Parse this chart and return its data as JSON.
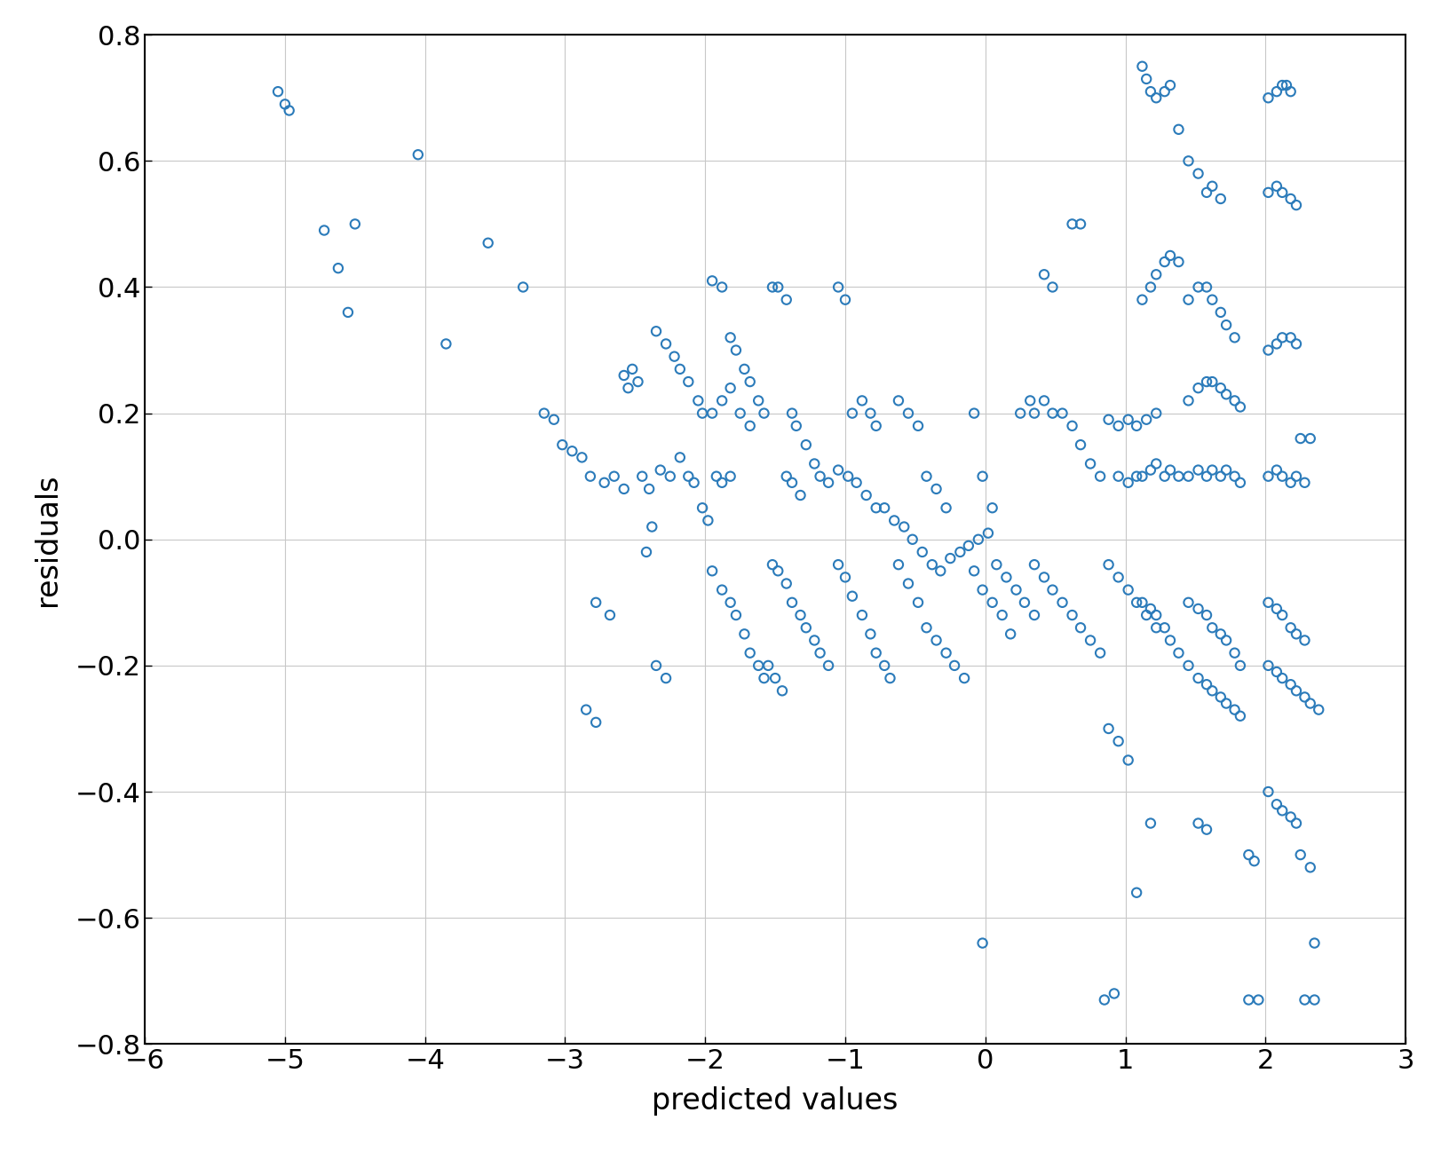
{
  "xlim": [
    -6,
    3
  ],
  "ylim": [
    -0.8,
    0.8
  ],
  "xticks": [
    -6,
    -5,
    -4,
    -3,
    -2,
    -1,
    0,
    1,
    2,
    3
  ],
  "yticks": [
    -0.8,
    -0.6,
    -0.4,
    -0.2,
    0,
    0.2,
    0.4,
    0.6,
    0.8
  ],
  "xlabel": "predicted values",
  "ylabel": "residuals",
  "marker_color": "#2B7BBA",
  "marker_size": 55,
  "marker_linewidth": 1.5,
  "grid_color": "#C8C8C8",
  "background_color": "#FFFFFF",
  "fig_background": "#FFFFFF",
  "spine_color": "#000000",
  "tick_labelsize": 22,
  "label_fontsize": 24,
  "points": [
    [
      -5.05,
      0.71
    ],
    [
      -5.0,
      0.69
    ],
    [
      -4.97,
      0.68
    ],
    [
      -4.72,
      0.49
    ],
    [
      -4.62,
      0.43
    ],
    [
      -4.55,
      0.36
    ],
    [
      -4.5,
      0.5
    ],
    [
      -4.05,
      0.61
    ],
    [
      -3.85,
      0.31
    ],
    [
      -3.55,
      0.47
    ],
    [
      -3.3,
      0.4
    ],
    [
      -3.15,
      0.2
    ],
    [
      -3.08,
      0.19
    ],
    [
      -3.02,
      0.15
    ],
    [
      -2.95,
      0.14
    ],
    [
      -2.88,
      0.13
    ],
    [
      -2.82,
      0.1
    ],
    [
      -2.72,
      0.09
    ],
    [
      -2.65,
      0.1
    ],
    [
      -2.58,
      0.08
    ],
    [
      -2.78,
      -0.1
    ],
    [
      -2.68,
      -0.12
    ],
    [
      -2.52,
      0.27
    ],
    [
      -2.48,
      0.25
    ],
    [
      -2.42,
      -0.02
    ],
    [
      -2.38,
      0.02
    ],
    [
      -2.35,
      0.33
    ],
    [
      -2.28,
      0.31
    ],
    [
      -2.22,
      0.29
    ],
    [
      -2.18,
      0.27
    ],
    [
      -2.12,
      0.25
    ],
    [
      -2.05,
      0.22
    ],
    [
      -2.02,
      0.2
    ],
    [
      -2.45,
      0.1
    ],
    [
      -2.4,
      0.08
    ],
    [
      -2.32,
      0.11
    ],
    [
      -2.25,
      0.1
    ],
    [
      -2.58,
      0.26
    ],
    [
      -2.55,
      0.24
    ],
    [
      -2.18,
      0.13
    ],
    [
      -2.12,
      0.1
    ],
    [
      -2.08,
      0.09
    ],
    [
      -2.02,
      0.05
    ],
    [
      -1.98,
      0.03
    ],
    [
      -1.95,
      0.41
    ],
    [
      -1.88,
      0.4
    ],
    [
      -1.82,
      0.32
    ],
    [
      -1.78,
      0.3
    ],
    [
      -1.72,
      0.27
    ],
    [
      -1.68,
      0.25
    ],
    [
      -1.62,
      0.22
    ],
    [
      -1.58,
      0.2
    ],
    [
      -1.92,
      0.1
    ],
    [
      -1.88,
      0.09
    ],
    [
      -1.82,
      0.1
    ],
    [
      -1.95,
      -0.05
    ],
    [
      -1.88,
      -0.08
    ],
    [
      -1.82,
      -0.1
    ],
    [
      -1.78,
      -0.12
    ],
    [
      -1.72,
      -0.15
    ],
    [
      -1.68,
      -0.18
    ],
    [
      -1.62,
      -0.2
    ],
    [
      -1.58,
      -0.22
    ],
    [
      -2.35,
      -0.2
    ],
    [
      -2.28,
      -0.22
    ],
    [
      -2.85,
      -0.27
    ],
    [
      -2.78,
      -0.29
    ],
    [
      -1.52,
      0.4
    ],
    [
      -1.48,
      0.4
    ],
    [
      -1.42,
      0.38
    ],
    [
      -1.38,
      0.2
    ],
    [
      -1.35,
      0.18
    ],
    [
      -1.28,
      0.15
    ],
    [
      -1.22,
      0.12
    ],
    [
      -1.18,
      0.1
    ],
    [
      -1.12,
      0.09
    ],
    [
      -1.52,
      -0.04
    ],
    [
      -1.48,
      -0.05
    ],
    [
      -1.42,
      -0.07
    ],
    [
      -1.38,
      -0.1
    ],
    [
      -1.32,
      -0.12
    ],
    [
      -1.28,
      -0.14
    ],
    [
      -1.22,
      -0.16
    ],
    [
      -1.18,
      -0.18
    ],
    [
      -1.12,
      -0.2
    ],
    [
      -1.55,
      -0.2
    ],
    [
      -1.5,
      -0.22
    ],
    [
      -1.45,
      -0.24
    ],
    [
      -1.05,
      0.4
    ],
    [
      -1.0,
      0.38
    ],
    [
      -0.95,
      0.2
    ],
    [
      -0.88,
      0.22
    ],
    [
      -0.82,
      0.2
    ],
    [
      -0.78,
      0.18
    ],
    [
      -1.05,
      -0.04
    ],
    [
      -1.0,
      -0.06
    ],
    [
      -0.95,
      -0.09
    ],
    [
      -0.88,
      -0.12
    ],
    [
      -0.82,
      -0.15
    ],
    [
      -0.78,
      -0.18
    ],
    [
      -0.72,
      -0.2
    ],
    [
      -0.68,
      -0.22
    ],
    [
      -0.62,
      0.22
    ],
    [
      -0.55,
      0.2
    ],
    [
      -0.48,
      0.18
    ],
    [
      -0.42,
      0.1
    ],
    [
      -0.35,
      0.08
    ],
    [
      -0.28,
      0.05
    ],
    [
      -0.62,
      -0.04
    ],
    [
      -0.55,
      -0.07
    ],
    [
      -0.48,
      -0.1
    ],
    [
      -0.42,
      -0.14
    ],
    [
      -0.35,
      -0.16
    ],
    [
      -0.28,
      -0.18
    ],
    [
      -0.22,
      -0.2
    ],
    [
      -0.15,
      -0.22
    ],
    [
      -0.08,
      0.2
    ],
    [
      -0.02,
      0.1
    ],
    [
      0.05,
      0.05
    ],
    [
      -0.08,
      -0.05
    ],
    [
      -0.02,
      -0.08
    ],
    [
      0.05,
      -0.1
    ],
    [
      0.12,
      -0.12
    ],
    [
      0.18,
      -0.15
    ],
    [
      -1.95,
      0.2
    ],
    [
      -1.88,
      0.22
    ],
    [
      -1.82,
      0.24
    ],
    [
      -1.75,
      0.2
    ],
    [
      -1.68,
      0.18
    ],
    [
      -1.42,
      0.1
    ],
    [
      -1.38,
      0.09
    ],
    [
      -1.32,
      0.07
    ],
    [
      -1.05,
      0.11
    ],
    [
      -0.98,
      0.1
    ],
    [
      -0.92,
      0.09
    ],
    [
      -0.85,
      0.07
    ],
    [
      -0.78,
      0.05
    ],
    [
      -0.72,
      0.05
    ],
    [
      -0.65,
      0.03
    ],
    [
      -0.58,
      0.02
    ],
    [
      -0.52,
      0.0
    ],
    [
      -0.45,
      -0.02
    ],
    [
      -0.38,
      -0.04
    ],
    [
      -0.32,
      -0.05
    ],
    [
      -0.25,
      -0.03
    ],
    [
      -0.18,
      -0.02
    ],
    [
      -0.12,
      -0.01
    ],
    [
      -0.05,
      0.0
    ],
    [
      0.02,
      0.01
    ],
    [
      0.08,
      -0.04
    ],
    [
      0.15,
      -0.06
    ],
    [
      0.22,
      -0.08
    ],
    [
      0.28,
      -0.1
    ],
    [
      0.35,
      -0.12
    ],
    [
      0.42,
      0.42
    ],
    [
      0.48,
      0.4
    ],
    [
      0.35,
      0.2
    ],
    [
      0.42,
      0.22
    ],
    [
      0.48,
      0.2
    ],
    [
      0.55,
      0.2
    ],
    [
      0.62,
      0.18
    ],
    [
      0.68,
      0.15
    ],
    [
      0.75,
      0.12
    ],
    [
      0.82,
      0.1
    ],
    [
      0.35,
      -0.04
    ],
    [
      0.42,
      -0.06
    ],
    [
      0.48,
      -0.08
    ],
    [
      0.55,
      -0.1
    ],
    [
      0.62,
      -0.12
    ],
    [
      0.68,
      -0.14
    ],
    [
      0.75,
      -0.16
    ],
    [
      0.82,
      -0.18
    ],
    [
      0.62,
      0.5
    ],
    [
      0.68,
      0.5
    ],
    [
      -0.02,
      -0.64
    ],
    [
      0.25,
      0.2
    ],
    [
      0.32,
      0.22
    ],
    [
      0.88,
      0.19
    ],
    [
      0.95,
      0.18
    ],
    [
      1.02,
      0.19
    ],
    [
      1.08,
      0.18
    ],
    [
      1.15,
      0.19
    ],
    [
      1.22,
      0.2
    ],
    [
      0.88,
      -0.04
    ],
    [
      0.95,
      -0.06
    ],
    [
      1.02,
      -0.08
    ],
    [
      1.08,
      -0.1
    ],
    [
      1.15,
      -0.12
    ],
    [
      1.22,
      -0.14
    ],
    [
      0.95,
      0.1
    ],
    [
      1.02,
      0.09
    ],
    [
      1.08,
      0.1
    ],
    [
      0.88,
      -0.3
    ],
    [
      0.95,
      -0.32
    ],
    [
      1.02,
      -0.35
    ],
    [
      0.85,
      -0.73
    ],
    [
      0.92,
      -0.72
    ],
    [
      1.12,
      0.75
    ],
    [
      1.15,
      0.73
    ],
    [
      1.18,
      0.71
    ],
    [
      1.22,
      0.7
    ],
    [
      1.28,
      0.71
    ],
    [
      1.32,
      0.72
    ],
    [
      1.38,
      0.65
    ],
    [
      1.12,
      0.38
    ],
    [
      1.18,
      0.4
    ],
    [
      1.22,
      0.42
    ],
    [
      1.28,
      0.44
    ],
    [
      1.32,
      0.45
    ],
    [
      1.38,
      0.44
    ],
    [
      1.12,
      0.1
    ],
    [
      1.18,
      0.11
    ],
    [
      1.22,
      0.12
    ],
    [
      1.28,
      0.1
    ],
    [
      1.32,
      0.11
    ],
    [
      1.38,
      0.1
    ],
    [
      1.12,
      -0.1
    ],
    [
      1.18,
      -0.11
    ],
    [
      1.22,
      -0.12
    ],
    [
      1.28,
      -0.14
    ],
    [
      1.32,
      -0.16
    ],
    [
      1.38,
      -0.18
    ],
    [
      1.08,
      -0.56
    ],
    [
      1.45,
      0.6
    ],
    [
      1.52,
      0.58
    ],
    [
      1.58,
      0.55
    ],
    [
      1.62,
      0.56
    ],
    [
      1.68,
      0.54
    ],
    [
      1.45,
      0.38
    ],
    [
      1.52,
      0.4
    ],
    [
      1.58,
      0.4
    ],
    [
      1.62,
      0.38
    ],
    [
      1.68,
      0.36
    ],
    [
      1.72,
      0.34
    ],
    [
      1.78,
      0.32
    ],
    [
      1.45,
      0.22
    ],
    [
      1.52,
      0.24
    ],
    [
      1.58,
      0.25
    ],
    [
      1.62,
      0.25
    ],
    [
      1.68,
      0.24
    ],
    [
      1.72,
      0.23
    ],
    [
      1.78,
      0.22
    ],
    [
      1.82,
      0.21
    ],
    [
      1.45,
      0.1
    ],
    [
      1.52,
      0.11
    ],
    [
      1.58,
      0.1
    ],
    [
      1.62,
      0.11
    ],
    [
      1.68,
      0.1
    ],
    [
      1.72,
      0.11
    ],
    [
      1.78,
      0.1
    ],
    [
      1.82,
      0.09
    ],
    [
      1.45,
      -0.1
    ],
    [
      1.52,
      -0.11
    ],
    [
      1.58,
      -0.12
    ],
    [
      1.62,
      -0.14
    ],
    [
      1.68,
      -0.15
    ],
    [
      1.72,
      -0.16
    ],
    [
      1.78,
      -0.18
    ],
    [
      1.82,
      -0.2
    ],
    [
      1.45,
      -0.2
    ],
    [
      1.52,
      -0.22
    ],
    [
      1.58,
      -0.23
    ],
    [
      1.62,
      -0.24
    ],
    [
      1.68,
      -0.25
    ],
    [
      1.72,
      -0.26
    ],
    [
      1.78,
      -0.27
    ],
    [
      1.82,
      -0.28
    ],
    [
      1.18,
      -0.45
    ],
    [
      1.52,
      -0.45
    ],
    [
      1.58,
      -0.46
    ],
    [
      1.88,
      -0.5
    ],
    [
      1.92,
      -0.51
    ],
    [
      2.02,
      0.7
    ],
    [
      2.08,
      0.71
    ],
    [
      2.12,
      0.72
    ],
    [
      2.15,
      0.72
    ],
    [
      2.18,
      0.71
    ],
    [
      2.02,
      0.55
    ],
    [
      2.08,
      0.56
    ],
    [
      2.12,
      0.55
    ],
    [
      2.18,
      0.54
    ],
    [
      2.22,
      0.53
    ],
    [
      2.02,
      0.3
    ],
    [
      2.08,
      0.31
    ],
    [
      2.12,
      0.32
    ],
    [
      2.18,
      0.32
    ],
    [
      2.22,
      0.31
    ],
    [
      2.25,
      0.16
    ],
    [
      2.32,
      0.16
    ],
    [
      2.02,
      0.1
    ],
    [
      2.08,
      0.11
    ],
    [
      2.12,
      0.1
    ],
    [
      2.18,
      0.09
    ],
    [
      2.22,
      0.1
    ],
    [
      2.28,
      0.09
    ],
    [
      2.02,
      -0.1
    ],
    [
      2.08,
      -0.11
    ],
    [
      2.12,
      -0.12
    ],
    [
      2.18,
      -0.14
    ],
    [
      2.22,
      -0.15
    ],
    [
      2.28,
      -0.16
    ],
    [
      2.02,
      -0.2
    ],
    [
      2.08,
      -0.21
    ],
    [
      2.12,
      -0.22
    ],
    [
      2.18,
      -0.23
    ],
    [
      2.22,
      -0.24
    ],
    [
      2.28,
      -0.25
    ],
    [
      2.32,
      -0.26
    ],
    [
      2.38,
      -0.27
    ],
    [
      2.02,
      -0.4
    ],
    [
      2.08,
      -0.42
    ],
    [
      2.12,
      -0.43
    ],
    [
      2.18,
      -0.44
    ],
    [
      2.22,
      -0.45
    ],
    [
      1.88,
      -0.73
    ],
    [
      1.95,
      -0.73
    ],
    [
      2.25,
      -0.5
    ],
    [
      2.32,
      -0.52
    ],
    [
      2.35,
      -0.64
    ],
    [
      2.28,
      -0.73
    ],
    [
      2.35,
      -0.73
    ]
  ]
}
